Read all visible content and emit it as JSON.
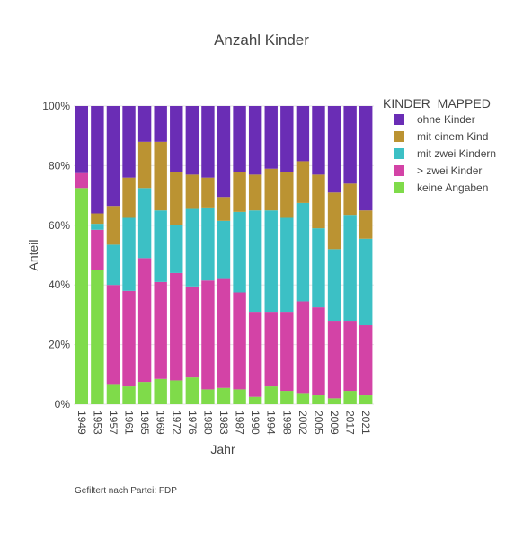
{
  "chart_data": {
    "type": "bar",
    "stacked": true,
    "title": "Anzahl Kinder",
    "xlabel": "Jahr",
    "ylabel": "Anteil",
    "ylim": [
      0,
      1
    ],
    "yticks": [
      0,
      0.2,
      0.4,
      0.6,
      0.8,
      1.0
    ],
    "ytick_labels": [
      "0%",
      "20%",
      "40%",
      "60%",
      "80%",
      "100%"
    ],
    "legend_title": "KINDER_MAPPED",
    "legend_position": "right",
    "categories": [
      "1949",
      "1953",
      "1957",
      "1961",
      "1965",
      "1969",
      "1972",
      "1976",
      "1980",
      "1983",
      "1987",
      "1990",
      "1994",
      "1998",
      "2002",
      "2005",
      "2009",
      "2017",
      "2021"
    ],
    "series": [
      {
        "name": "keine Angaben",
        "color": "#7fdb4a",
        "values": [
          0.725,
          0.45,
          0.065,
          0.06,
          0.075,
          0.085,
          0.08,
          0.09,
          0.05,
          0.055,
          0.05,
          0.025,
          0.06,
          0.045,
          0.035,
          0.03,
          0.02,
          0.045,
          0.03
        ]
      },
      {
        "name": "> zwei Kinder",
        "color": "#d343a6",
        "values": [
          0.05,
          0.135,
          0.335,
          0.32,
          0.415,
          0.325,
          0.36,
          0.305,
          0.365,
          0.365,
          0.325,
          0.285,
          0.25,
          0.265,
          0.31,
          0.295,
          0.26,
          0.235,
          0.235
        ]
      },
      {
        "name": "mit zwei Kindern",
        "color": "#3cc0c5",
        "values": [
          0,
          0.02,
          0.135,
          0.245,
          0.235,
          0.24,
          0.16,
          0.26,
          0.245,
          0.195,
          0.27,
          0.34,
          0.34,
          0.315,
          0.33,
          0.265,
          0.24,
          0.355,
          0.29
        ]
      },
      {
        "name": "mit einem Kind",
        "color": "#bb9332",
        "values": [
          0,
          0.035,
          0.13,
          0.135,
          0.155,
          0.23,
          0.18,
          0.115,
          0.1,
          0.08,
          0.135,
          0.12,
          0.14,
          0.155,
          0.14,
          0.18,
          0.19,
          0.105,
          0.095
        ]
      },
      {
        "name": "ohne Kinder",
        "color": "#6a2db5",
        "values": [
          0.225,
          0.36,
          0.335,
          0.24,
          0.12,
          0.12,
          0.22,
          0.23,
          0.24,
          0.305,
          0.22,
          0.23,
          0.21,
          0.22,
          0.185,
          0.23,
          0.29,
          0.26,
          0.35
        ]
      }
    ],
    "legend_order": [
      "ohne Kinder",
      "mit einem Kind",
      "mit zwei Kindern",
      "> zwei Kinder",
      "keine Angaben"
    ]
  },
  "annotation": "Gefiltert nach Partei: FDP"
}
